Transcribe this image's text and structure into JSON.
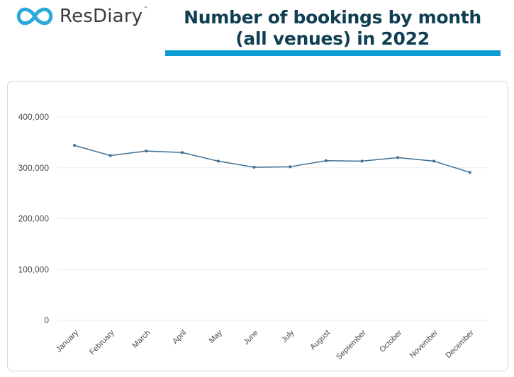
{
  "brand": {
    "name": "ResDiary",
    "trademark": "™",
    "icon": "resdiary-loop-logo",
    "color": "#2ba9dd"
  },
  "title_line1": "Number of bookings by month",
  "title_line2": "(all venues) in 2022",
  "colors": {
    "title": "#0f3f52",
    "accent_bar": "#0b9dd6",
    "series": "#3e6e93",
    "grid": "#ececec"
  },
  "chart_data": {
    "type": "line",
    "title": "Number of bookings by month (all venues) in 2022",
    "xlabel": "",
    "ylabel": "",
    "categories": [
      "January",
      "February",
      "March",
      "April",
      "May",
      "June",
      "July",
      "August",
      "September",
      "October",
      "November",
      "December"
    ],
    "series": [
      {
        "values": [
          344000,
          324000,
          333000,
          330000,
          313000,
          301000,
          302000,
          314000,
          313000,
          320000,
          313000,
          291000
        ]
      }
    ],
    "ylim": [
      0,
      400000
    ],
    "yticks": [
      {
        "value": 0,
        "label": "0"
      },
      {
        "value": 100000,
        "label": "100,000"
      },
      {
        "value": 200000,
        "label": "200,000"
      },
      {
        "value": 300000,
        "label": "300,000"
      },
      {
        "value": 400000,
        "label": "400,000"
      }
    ],
    "grid": true,
    "legend": "none",
    "markers": true
  }
}
